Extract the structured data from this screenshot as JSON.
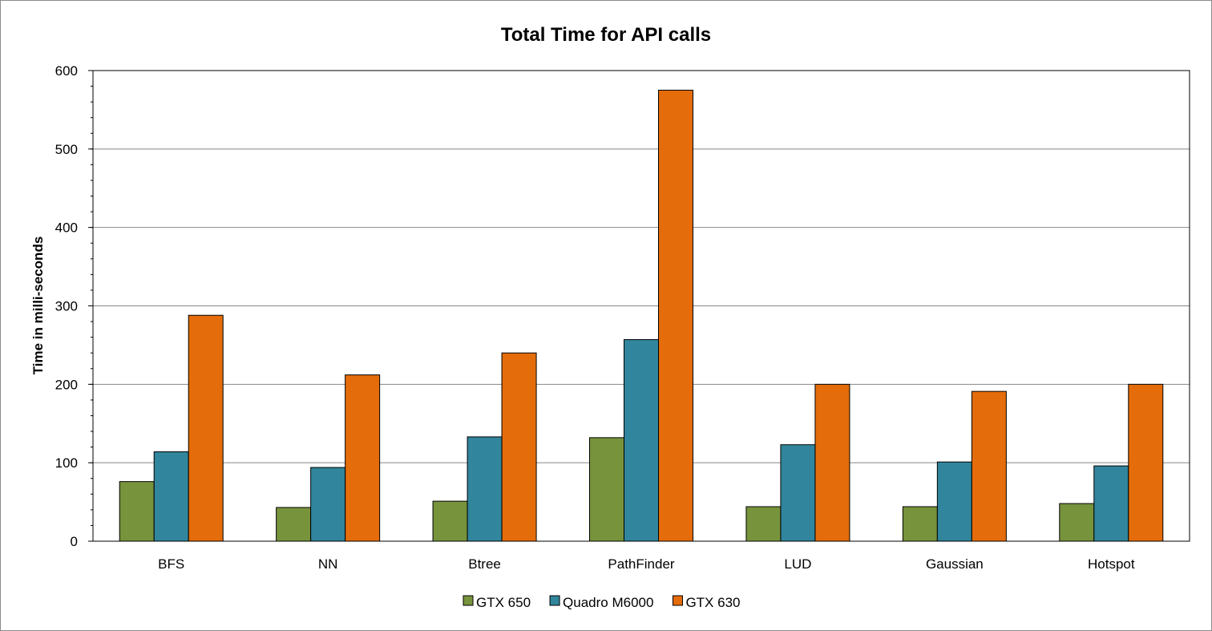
{
  "chart_data": {
    "type": "bar",
    "title": "Total Time for API calls",
    "xlabel": "",
    "ylabel": "Time in milli-seconds",
    "ylim": [
      0,
      600
    ],
    "yticks": [
      "0",
      "100",
      "200",
      "300",
      "400",
      "500",
      "600"
    ],
    "grid": true,
    "legend_position": "bottom",
    "categories": [
      "BFS",
      "NN",
      "Btree",
      "PathFinder",
      "LUD",
      "Gaussian",
      "Hotspot"
    ],
    "series": [
      {
        "name": "GTX 650",
        "color": "#77933c",
        "values": [
          76,
          43,
          51,
          132,
          44,
          44,
          48
        ]
      },
      {
        "name": "Quadro M6000",
        "color": "#31859c",
        "values": [
          114,
          94,
          133,
          257,
          123,
          101,
          96
        ]
      },
      {
        "name": "GTX 630",
        "color": "#e46c0a",
        "values": [
          288,
          212,
          240,
          575,
          200,
          191,
          200
        ]
      }
    ]
  }
}
